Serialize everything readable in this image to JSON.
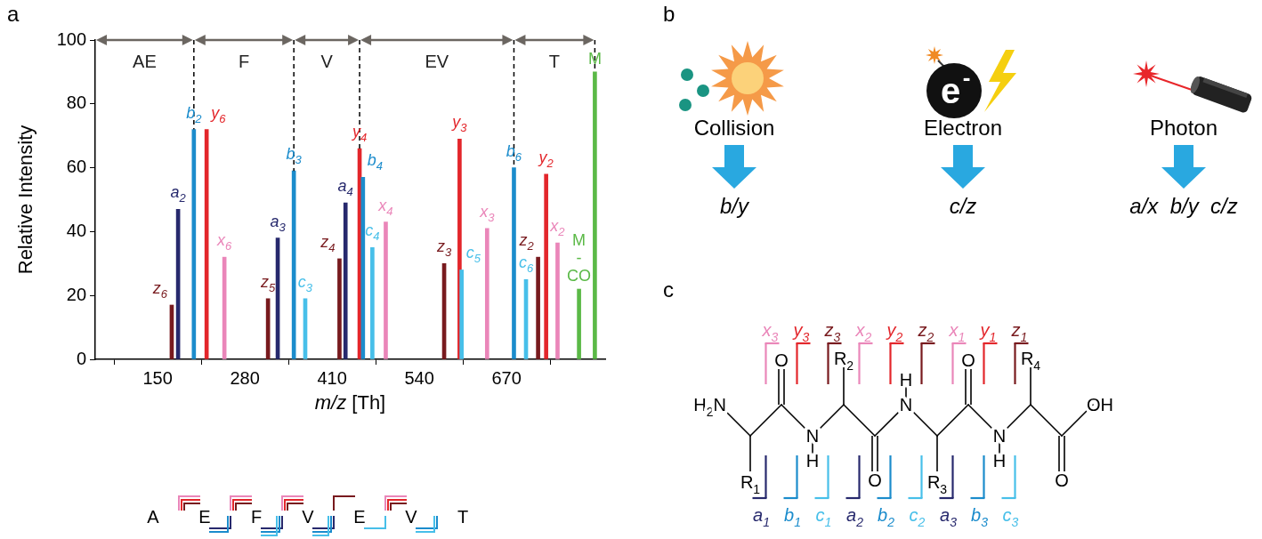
{
  "panel_labels": [
    "a",
    "b",
    "c"
  ],
  "ion_colors": {
    "a": "#27296d",
    "b": "#1b8ccc",
    "c": "#47bfe9",
    "x": "#ea86b9",
    "y": "#e3262b",
    "z": "#781a1e",
    "M": "#5bb947"
  },
  "chart_data": {
    "type": "bar",
    "x_label": "m/z [Th]",
    "y_label": "Relative Intensity",
    "x": [
      171,
      180.5,
      204,
      223,
      249.5,
      314.5,
      329,
      353,
      370,
      421,
      430,
      451,
      456,
      470,
      490,
      577,
      600,
      603,
      641,
      681,
      699,
      717,
      729,
      746,
      778,
      801.6
    ],
    "values": [
      17,
      47,
      72,
      72,
      32,
      19,
      38,
      59,
      19,
      31.5,
      49,
      66,
      57,
      35,
      43,
      30,
      69,
      28,
      41,
      60,
      25,
      32,
      58,
      36.5,
      22,
      90
    ],
    "peak_labels": [
      "z6",
      "a2",
      "b2",
      "y6",
      "x6",
      "z5",
      "a3",
      "b3",
      "c3",
      "z4",
      "a4",
      "y4",
      "b4",
      "c4",
      "x4",
      "z3",
      "y3",
      "c5",
      "x3",
      "b6",
      "c6",
      "z2",
      "y2",
      "x2",
      "M-CO",
      "M"
    ],
    "xlim": [
      57,
      817
    ],
    "xticks": [
      150,
      280,
      410,
      540,
      670
    ],
    "ylim": [
      0,
      100
    ],
    "yticks": [
      0,
      20,
      40,
      60,
      80,
      100
    ],
    "grid": false,
    "sequence_segments": {
      "labels": [
        "AE",
        "F",
        "V",
        "EV",
        "T"
      ],
      "boundaries": [
        57,
        204,
        353,
        451,
        681,
        801.6
      ]
    },
    "fragment_map": {
      "residues": [
        "A",
        "E",
        "F",
        "V",
        "E",
        "V",
        "T"
      ],
      "above": [
        [
          "x",
          "y",
          "z"
        ],
        [
          "x",
          "y",
          "z"
        ],
        [
          "x",
          "y",
          "z"
        ],
        [
          "z"
        ],
        [
          "x",
          "y",
          "z"
        ],
        []
      ],
      "below": [
        [],
        [
          "a",
          "b"
        ],
        [
          "a",
          "b",
          "c"
        ],
        [
          "a",
          "b",
          "c"
        ],
        [
          "c"
        ],
        [
          "b",
          "c"
        ]
      ]
    }
  },
  "panel_b": {
    "methods": [
      {
        "name": "Collision",
        "ions": "b/y"
      },
      {
        "name": "Electron",
        "icon_text": "e-",
        "ions": "c/z"
      },
      {
        "name": "Photon",
        "ions": "a/x  b/y  c/z"
      }
    ]
  },
  "panel_c": {
    "n_terminus": "H2N",
    "c_terminus": "OH",
    "carbonyl": "O",
    "amide_n": "N",
    "amide_h": "H",
    "side_chains": [
      "R1",
      "R2",
      "R3",
      "R4"
    ],
    "c_terminal_ions": [
      [
        "x3",
        "y3",
        "z3"
      ],
      [
        "x2",
        "y2",
        "z2"
      ],
      [
        "x1",
        "y1",
        "z1"
      ]
    ],
    "n_terminal_ions": [
      [
        "a1",
        "b1",
        "c1"
      ],
      [
        "a2",
        "b2",
        "c2"
      ],
      [
        "a3",
        "b3",
        "c3"
      ]
    ]
  }
}
